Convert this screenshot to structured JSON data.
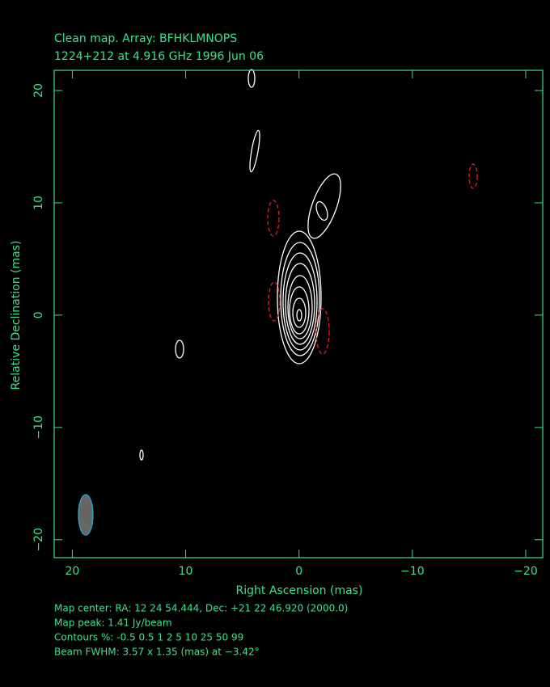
{
  "chart_data": {
    "type": "contour",
    "title": "Clean map.  Array: BFHKLMNOPS",
    "subtitle": "1224+212 at 4.916 GHz 1996 Jun 06",
    "x_label": "Right Ascension  (mas)",
    "y_label": "Relative Declination  (mas)",
    "xlim": [
      21.6,
      -21.5
    ],
    "ylim": [
      -21.6,
      21.8
    ],
    "xticks": [
      20,
      10,
      0,
      {
        "value": -10,
        "label": "−10"
      },
      {
        "value": -20,
        "label": "−20"
      }
    ],
    "yticks": [
      {
        "value": -20,
        "label": "−20"
      },
      {
        "value": -10,
        "label": "−10"
      },
      0,
      10,
      20
    ],
    "color": "#3fe08c",
    "annotations": [
      "Map center:  RA: 12 24 54.444,  Dec: +21 22 46.920 (2000.0)",
      "Map peak: 1.41 Jy/beam",
      "Contours %: -0.5 0.5 1 2 5 10 25 50 99",
      "Beam FWHM: 3.57 x 1.35 (mas) at −3.42°"
    ]
  }
}
